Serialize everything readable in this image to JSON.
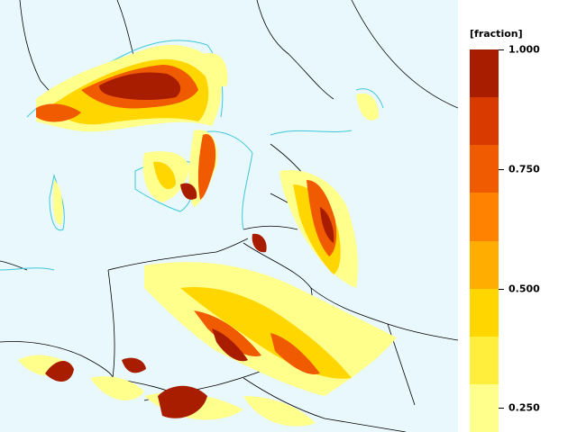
{
  "legend": {
    "title": "[fraction]",
    "ticks": [
      {
        "value": 1.0,
        "label": "1.000"
      },
      {
        "value": 0.75,
        "label": "0.750"
      },
      {
        "value": 0.5,
        "label": "0.500"
      },
      {
        "value": 0.25,
        "label": "0.250"
      }
    ],
    "scale": {
      "min": 0.2,
      "max": 1.0
    },
    "bins": [
      {
        "from": 0.9,
        "to": 1.0,
        "color": "#a81c00"
      },
      {
        "from": 0.8,
        "to": 0.9,
        "color": "#d93a00"
      },
      {
        "from": 0.7,
        "to": 0.8,
        "color": "#f05a00"
      },
      {
        "from": 0.6,
        "to": 0.7,
        "color": "#ff8300"
      },
      {
        "from": 0.5,
        "to": 0.6,
        "color": "#ffad00"
      },
      {
        "from": 0.4,
        "to": 0.5,
        "color": "#ffd600"
      },
      {
        "from": 0.3,
        "to": 0.4,
        "color": "#ffef3c"
      },
      {
        "from": 0.2,
        "to": 0.3,
        "color": "#ffff8c"
      }
    ]
  },
  "map": {
    "background_color": "#e8f8fc",
    "coast_color": "#3ec8d8",
    "border_color": "#000000"
  }
}
